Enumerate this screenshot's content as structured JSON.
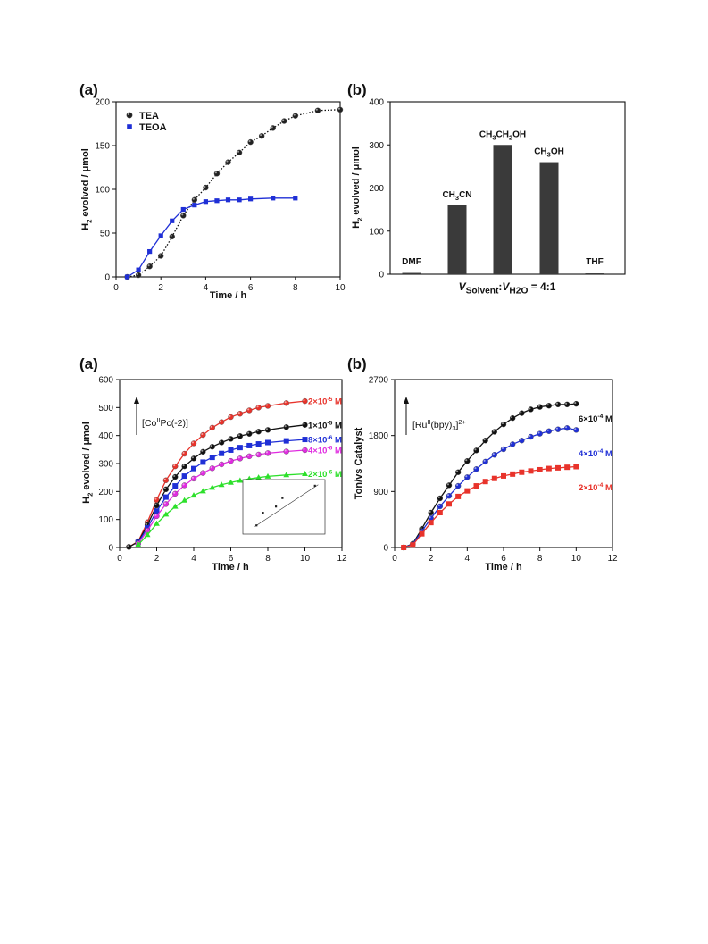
{
  "figures": [
    {
      "panel_label": "(a)",
      "legend": [
        "TEA",
        "TEOA"
      ],
      "xlabel": "Time / h",
      "ylabel_parts": [
        "H",
        "2",
        " evolved / μmol"
      ]
    },
    {
      "panel_label": "(b)",
      "xlabel_parts": [
        "V",
        "Solvent",
        ":",
        "V",
        "H2O",
        " = 4:1"
      ],
      "ylabel_parts": [
        "H",
        "2",
        " evolved / μmol"
      ]
    },
    {
      "panel_label": "(a)",
      "annotation_parts": [
        "[Co",
        "II",
        "Pc(-2)]"
      ],
      "xlabel": "Time / h",
      "ylabel_parts": [
        "H",
        "2",
        " evolved / μmol"
      ]
    },
    {
      "panel_label": "(b)",
      "annotation_parts": [
        "[Ru",
        "II",
        "(bpy)",
        "3",
        "]",
        "2+"
      ],
      "xlabel": "Time / h",
      "ylabel": "Ton/vs Catalyst"
    }
  ],
  "chart_data": [
    {
      "type": "scatter",
      "xlim": [
        0,
        10
      ],
      "ylim": [
        0,
        200
      ],
      "xticks": [
        0,
        2,
        4,
        6,
        8,
        10
      ],
      "yticks": [
        0,
        50,
        100,
        150,
        200
      ],
      "series": [
        {
          "name": "TEA",
          "color": "#111111",
          "marker": "circle",
          "fit": "dotted",
          "x": [
            0.5,
            1,
            1.5,
            2,
            2.5,
            3,
            3.5,
            4,
            4.5,
            5,
            5.5,
            6,
            6.5,
            7,
            7.5,
            8,
            9,
            10
          ],
          "y": [
            0,
            2,
            12,
            24,
            46,
            70,
            88,
            102,
            118,
            131,
            142,
            154,
            161,
            170,
            178,
            184,
            190,
            191
          ]
        },
        {
          "name": "TEOA",
          "color": "#1f2fd6",
          "marker": "square",
          "fit": "solid",
          "x": [
            0.5,
            1,
            1.5,
            2,
            2.5,
            3,
            3.5,
            4,
            4.5,
            5,
            5.5,
            6,
            7,
            8
          ],
          "y": [
            0,
            8,
            29,
            47,
            64,
            77,
            82,
            86,
            87,
            88,
            88,
            89,
            90,
            90
          ]
        }
      ]
    },
    {
      "type": "bar",
      "ylim": [
        0,
        400
      ],
      "yticks": [
        0,
        100,
        200,
        300,
        400
      ],
      "categories": [
        "DMF",
        "CH3CN",
        "CH3CH2OH",
        "CH3OH",
        "THF"
      ],
      "label_parts": [
        [
          [
            "DMF",
            false
          ]
        ],
        [
          [
            "CH",
            false
          ],
          [
            "3",
            true
          ],
          [
            "CN",
            false
          ]
        ],
        [
          [
            "CH",
            false
          ],
          [
            "3",
            true
          ],
          [
            "CH",
            false
          ],
          [
            "2",
            true
          ],
          [
            "OH",
            false
          ]
        ],
        [
          [
            "CH",
            false
          ],
          [
            "3",
            true
          ],
          [
            "OH",
            false
          ]
        ],
        [
          [
            "THF",
            false
          ]
        ]
      ],
      "values": [
        3,
        160,
        300,
        260,
        2
      ],
      "color": "#3a3a3a"
    },
    {
      "type": "scatter",
      "xlim": [
        0,
        12
      ],
      "ylim": [
        0,
        600
      ],
      "xticks": [
        0,
        2,
        4,
        6,
        8,
        10,
        12
      ],
      "yticks": [
        0,
        100,
        200,
        300,
        400,
        500,
        600
      ],
      "series": [
        {
          "name": "2×10⁻⁵ M",
          "label_parts": [
            "2×10",
            "-5",
            " M"
          ],
          "color": "#e8332b",
          "marker": "circle",
          "plateau": 525,
          "halftime": 2.3,
          "x": [
            0.5,
            1,
            1.5,
            2,
            2.5,
            3,
            3.5,
            4,
            4.5,
            5,
            5.5,
            6,
            6.5,
            7,
            7.5,
            8,
            9,
            10
          ],
          "y": [
            2,
            22,
            90,
            170,
            240,
            290,
            335,
            372,
            402,
            428,
            448,
            466,
            478,
            490,
            500,
            506,
            516,
            523
          ]
        },
        {
          "name": "1×10⁻⁵ M",
          "label_parts": [
            "1×10",
            "-5",
            " M"
          ],
          "color": "#111111",
          "marker": "circle",
          "plateau": 442,
          "halftime": 2.3,
          "x": [
            0.5,
            1,
            1.5,
            2,
            2.5,
            3,
            3.5,
            4,
            4.5,
            5,
            5.5,
            6,
            6.5,
            7,
            7.5,
            8,
            9,
            10
          ],
          "y": [
            2,
            20,
            80,
            150,
            208,
            252,
            290,
            318,
            342,
            360,
            375,
            388,
            398,
            406,
            414,
            420,
            430,
            438
          ]
        },
        {
          "name": "8×10⁻⁶ M",
          "label_parts": [
            "8×10",
            "-6",
            " M"
          ],
          "color": "#1f2fd6",
          "marker": "square",
          "plateau": 390,
          "halftime": 2.3,
          "x": [
            1,
            1.5,
            2,
            2.5,
            3,
            3.5,
            4,
            4.5,
            5,
            5.5,
            6,
            6.5,
            7,
            7.5,
            8,
            9,
            10
          ],
          "y": [
            18,
            70,
            130,
            180,
            220,
            255,
            282,
            305,
            322,
            336,
            348,
            357,
            364,
            370,
            375,
            381,
            386
          ]
        },
        {
          "name": "4×10⁻⁶ M",
          "label_parts": [
            "4×10",
            "-6",
            " M"
          ],
          "color": "#e02be0",
          "marker": "circle",
          "plateau": 357,
          "halftime": 2.3,
          "x": [
            1,
            1.5,
            2,
            2.5,
            3,
            3.5,
            4,
            4.5,
            5,
            5.5,
            6,
            6.5,
            7,
            7.5,
            8,
            9,
            10
          ],
          "y": [
            14,
            60,
            112,
            155,
            192,
            222,
            246,
            266,
            283,
            297,
            309,
            318,
            326,
            332,
            337,
            343,
            348
          ]
        },
        {
          "name": "2×10⁻⁶ M",
          "label_parts": [
            "2×10",
            "-6",
            " M"
          ],
          "color": "#2de02b",
          "marker": "triangle",
          "plateau": 270,
          "halftime": 2.3,
          "x": [
            1,
            1.5,
            2,
            2.5,
            3,
            3.5,
            4,
            4.5,
            5,
            5.5,
            6,
            6.5,
            7,
            7.5,
            8,
            9,
            10
          ],
          "y": [
            10,
            45,
            85,
            118,
            146,
            168,
            186,
            201,
            214,
            224,
            232,
            239,
            245,
            250,
            254,
            259,
            263
          ]
        }
      ],
      "inset": {
        "type": "scatter",
        "points": [
          [
            2,
            262
          ],
          [
            4,
            345
          ],
          [
            8,
            386
          ],
          [
            10,
            442
          ],
          [
            20,
            523
          ]
        ]
      }
    },
    {
      "type": "scatter",
      "xlim": [
        0,
        12
      ],
      "ylim": [
        0,
        2700
      ],
      "xticks": [
        0,
        2,
        4,
        6,
        8,
        10,
        12
      ],
      "yticks": [
        0,
        900,
        1800,
        2700
      ],
      "series": [
        {
          "name": "6×10⁻⁴ M",
          "label_parts": [
            "6×10",
            "-4",
            " M"
          ],
          "color": "#111111",
          "marker": "circle",
          "plateau": 2420,
          "halftime": 3.0,
          "x": [
            0.5,
            1,
            1.5,
            2,
            2.5,
            3,
            3.5,
            4,
            4.5,
            5,
            5.5,
            6,
            6.5,
            7,
            7.5,
            8,
            8.5,
            9,
            9.5,
            10
          ],
          "y": [
            0,
            60,
            300,
            560,
            790,
            1000,
            1210,
            1390,
            1560,
            1720,
            1860,
            1980,
            2080,
            2160,
            2220,
            2260,
            2280,
            2300,
            2300,
            2310
          ]
        },
        {
          "name": "4×10⁻⁴ M",
          "label_parts": [
            "4×10",
            "-4",
            " M"
          ],
          "color": "#1f2fd6",
          "marker": "circle",
          "plateau": 1930,
          "halftime": 3.0,
          "x": [
            0.5,
            1,
            1.5,
            2,
            2.5,
            3,
            3.5,
            4,
            4.5,
            5,
            5.5,
            6,
            6.5,
            7,
            7.5,
            8,
            8.5,
            9,
            9.5,
            10
          ],
          "y": [
            0,
            50,
            260,
            470,
            660,
            830,
            990,
            1130,
            1260,
            1380,
            1490,
            1580,
            1660,
            1720,
            1780,
            1830,
            1870,
            1900,
            1920,
            1890
          ]
        },
        {
          "name": "2×10⁻⁴ M",
          "label_parts": [
            "2×10",
            "-4",
            " M"
          ],
          "color": "#e8332b",
          "marker": "square",
          "plateau": 1350,
          "halftime": 2.8,
          "x": [
            0.5,
            1,
            1.5,
            2,
            2.5,
            3,
            3.5,
            4,
            4.5,
            5,
            5.5,
            6,
            6.5,
            7,
            7.5,
            8,
            8.5,
            9,
            9.5,
            10
          ],
          "y": [
            0,
            40,
            220,
            400,
            560,
            700,
            820,
            910,
            990,
            1060,
            1110,
            1150,
            1180,
            1210,
            1230,
            1250,
            1270,
            1280,
            1290,
            1300
          ]
        }
      ]
    }
  ]
}
